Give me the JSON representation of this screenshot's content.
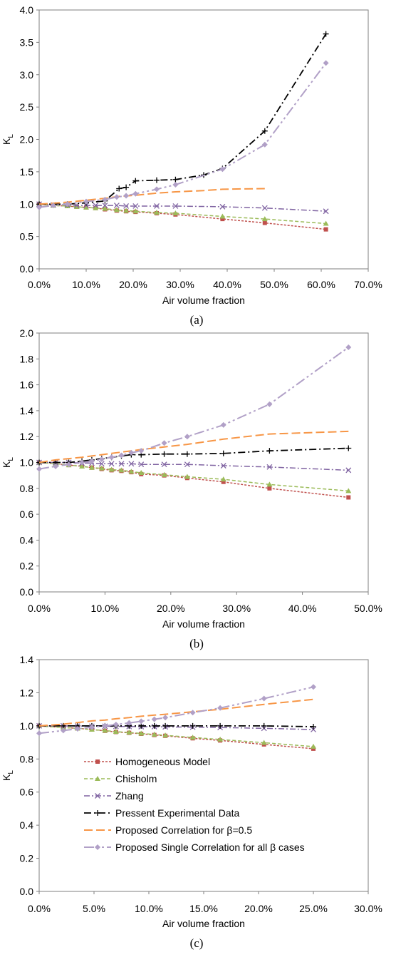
{
  "legend": [
    {
      "series": "homogeneous",
      "label": "Homogeneous Model"
    },
    {
      "series": "chisholm",
      "label": "Chisholm"
    },
    {
      "series": "zhang",
      "label": "Zhang"
    },
    {
      "series": "experimental",
      "label": "Pressent Experimental Data"
    },
    {
      "series": "proposed_beta",
      "label": "Proposed Correlation for  β=0.5"
    },
    {
      "series": "proposed_single",
      "label": "Proposed Single Correlation for all β cases"
    }
  ],
  "styles": {
    "homogeneous": {
      "color": "#C0504D",
      "marker": "square",
      "dash": "3,2",
      "width": 1.5
    },
    "chisholm": {
      "color": "#9BBB59",
      "marker": "triangle",
      "dash": "5,3",
      "width": 1.5
    },
    "zhang": {
      "color": "#8064A2",
      "marker": "x",
      "dash": "8,3,2,3",
      "width": 1.5
    },
    "experimental": {
      "color": "#000000",
      "marker": "plus",
      "dash": "10,4,2,4",
      "width": 1.8
    },
    "proposed_beta": {
      "color": "#F79646",
      "marker": "none",
      "dash": "12,5",
      "width": 2
    },
    "proposed_single": {
      "color": "#B1A0C7",
      "marker": "diamond",
      "dash": "14,4,3,4,3,4",
      "width": 2
    }
  },
  "chart_data": [
    {
      "type": "line",
      "caption": "(a)",
      "xlabel": "Air volume fraction",
      "ylabel": "K",
      "ylabel_sub": "L",
      "xlim": [
        0,
        0.7
      ],
      "ylim": [
        0,
        4.0
      ],
      "xticks": [
        0,
        0.1,
        0.2,
        0.3,
        0.4,
        0.5,
        0.6,
        0.7
      ],
      "xtick_labels": [
        "0.0%",
        "10.0%",
        "20.0%",
        "30.0%",
        "40.0%",
        "50.0%",
        "60.0%",
        "70.0%"
      ],
      "yticks": [
        0,
        0.5,
        1.0,
        1.5,
        2.0,
        2.5,
        3.0,
        3.5,
        4.0
      ],
      "ytick_labels": [
        "0.0",
        "0.5",
        "1.0",
        "1.5",
        "2.0",
        "2.5",
        "3.0",
        "3.5",
        "4.0"
      ],
      "series": [
        {
          "key": "homogeneous",
          "x": [
            0,
            0.03,
            0.06,
            0.08,
            0.1,
            0.12,
            0.14,
            0.165,
            0.185,
            0.205,
            0.25,
            0.29,
            0.39,
            0.48,
            0.61
          ],
          "y": [
            1.0,
            0.98,
            0.97,
            0.96,
            0.95,
            0.94,
            0.92,
            0.9,
            0.89,
            0.88,
            0.86,
            0.84,
            0.77,
            0.71,
            0.61
          ]
        },
        {
          "key": "chisholm",
          "x": [
            0,
            0.03,
            0.06,
            0.08,
            0.1,
            0.12,
            0.14,
            0.165,
            0.185,
            0.205,
            0.25,
            0.29,
            0.39,
            0.48,
            0.61
          ],
          "y": [
            1.0,
            0.98,
            0.97,
            0.96,
            0.95,
            0.94,
            0.93,
            0.91,
            0.9,
            0.89,
            0.87,
            0.86,
            0.81,
            0.77,
            0.7
          ]
        },
        {
          "key": "zhang",
          "x": [
            0,
            0.03,
            0.06,
            0.08,
            0.1,
            0.12,
            0.14,
            0.165,
            0.185,
            0.205,
            0.25,
            0.29,
            0.39,
            0.48,
            0.61
          ],
          "y": [
            1.0,
            0.99,
            0.99,
            0.98,
            0.98,
            0.98,
            0.98,
            0.98,
            0.97,
            0.97,
            0.97,
            0.97,
            0.96,
            0.94,
            0.89
          ]
        },
        {
          "key": "experimental",
          "x": [
            0,
            0.06,
            0.1,
            0.14,
            0.17,
            0.185,
            0.205,
            0.25,
            0.29,
            0.35,
            0.39,
            0.48,
            0.61
          ],
          "y": [
            1.0,
            1.0,
            1.02,
            1.05,
            1.24,
            1.26,
            1.36,
            1.37,
            1.38,
            1.45,
            1.55,
            2.13,
            3.63
          ]
        },
        {
          "key": "proposed_beta",
          "x": [
            0,
            0.06,
            0.1,
            0.14,
            0.17,
            0.21,
            0.25,
            0.29,
            0.35,
            0.39,
            0.43,
            0.48
          ],
          "y": [
            1.0,
            1.03,
            1.06,
            1.09,
            1.12,
            1.14,
            1.17,
            1.19,
            1.21,
            1.23,
            1.235,
            1.24
          ]
        },
        {
          "key": "proposed_single",
          "x": [
            0,
            0.03,
            0.06,
            0.1,
            0.14,
            0.165,
            0.185,
            0.205,
            0.25,
            0.29,
            0.39,
            0.48,
            0.61
          ],
          "y": [
            0.95,
            0.98,
            1.0,
            1.04,
            1.07,
            1.11,
            1.13,
            1.16,
            1.23,
            1.3,
            1.54,
            1.92,
            3.18
          ]
        }
      ]
    },
    {
      "type": "line",
      "caption": "(b)",
      "xlabel": "Air volume fraction",
      "ylabel": "K",
      "ylabel_sub": "L",
      "xlim": [
        0,
        0.5
      ],
      "ylim": [
        0,
        2.0
      ],
      "xticks": [
        0,
        0.1,
        0.2,
        0.3,
        0.4,
        0.5
      ],
      "xtick_labels": [
        "0.0%",
        "10.0%",
        "20.0%",
        "30.0%",
        "40.0%",
        "50.0%"
      ],
      "yticks": [
        0,
        0.2,
        0.4,
        0.6,
        0.8,
        1.0,
        1.2,
        1.4,
        1.6,
        1.8,
        2.0
      ],
      "ytick_labels": [
        "0.0",
        "0.2",
        "0.4",
        "0.6",
        "0.8",
        "1.0",
        "1.2",
        "1.4",
        "1.6",
        "1.8",
        "2.0"
      ],
      "series": [
        {
          "key": "homogeneous",
          "x": [
            0,
            0.025,
            0.045,
            0.065,
            0.08,
            0.095,
            0.11,
            0.125,
            0.14,
            0.155,
            0.19,
            0.225,
            0.28,
            0.35,
            0.47
          ],
          "y": [
            1.0,
            0.99,
            0.98,
            0.97,
            0.96,
            0.95,
            0.94,
            0.935,
            0.925,
            0.91,
            0.9,
            0.88,
            0.85,
            0.8,
            0.73
          ]
        },
        {
          "key": "chisholm",
          "x": [
            0,
            0.025,
            0.045,
            0.065,
            0.08,
            0.095,
            0.11,
            0.125,
            0.14,
            0.155,
            0.19,
            0.225,
            0.28,
            0.35,
            0.47
          ],
          "y": [
            1.0,
            0.99,
            0.98,
            0.97,
            0.96,
            0.955,
            0.945,
            0.94,
            0.93,
            0.92,
            0.905,
            0.89,
            0.87,
            0.83,
            0.78
          ]
        },
        {
          "key": "zhang",
          "x": [
            0,
            0.025,
            0.045,
            0.065,
            0.08,
            0.095,
            0.11,
            0.125,
            0.14,
            0.155,
            0.19,
            0.225,
            0.28,
            0.35,
            0.47
          ],
          "y": [
            1.0,
            1.0,
            1.0,
            0.995,
            0.995,
            0.99,
            0.99,
            0.99,
            0.99,
            0.985,
            0.985,
            0.985,
            0.975,
            0.965,
            0.94
          ]
        },
        {
          "key": "experimental",
          "x": [
            0,
            0.025,
            0.045,
            0.065,
            0.08,
            0.095,
            0.11,
            0.125,
            0.14,
            0.155,
            0.19,
            0.225,
            0.28,
            0.35,
            0.47
          ],
          "y": [
            1.0,
            1.0,
            1.0,
            1.01,
            1.02,
            1.03,
            1.04,
            1.05,
            1.06,
            1.06,
            1.065,
            1.065,
            1.07,
            1.09,
            1.11
          ]
        },
        {
          "key": "proposed_beta",
          "x": [
            0,
            0.025,
            0.045,
            0.065,
            0.08,
            0.095,
            0.11,
            0.125,
            0.14,
            0.155,
            0.19,
            0.225,
            0.28,
            0.35,
            0.47
          ],
          "y": [
            1.0,
            1.02,
            1.03,
            1.04,
            1.05,
            1.06,
            1.07,
            1.08,
            1.09,
            1.1,
            1.12,
            1.14,
            1.18,
            1.22,
            1.24
          ]
        },
        {
          "key": "proposed_single",
          "x": [
            0,
            0.025,
            0.045,
            0.065,
            0.08,
            0.095,
            0.11,
            0.125,
            0.14,
            0.155,
            0.19,
            0.225,
            0.28,
            0.35,
            0.47
          ],
          "y": [
            0.95,
            0.97,
            0.985,
            1.0,
            1.01,
            1.025,
            1.04,
            1.055,
            1.075,
            1.09,
            1.15,
            1.2,
            1.29,
            1.45,
            1.89
          ]
        }
      ]
    },
    {
      "type": "line",
      "caption": "(c)",
      "xlabel": "Air volume fraction",
      "ylabel": "K",
      "ylabel_sub": "L",
      "xlim": [
        0,
        0.3
      ],
      "ylim": [
        0,
        1.4
      ],
      "xticks": [
        0,
        0.05,
        0.1,
        0.15,
        0.2,
        0.25,
        0.3
      ],
      "xtick_labels": [
        "0.0%",
        "5.0%",
        "10.0%",
        "15.0%",
        "20.0%",
        "25.0%",
        "30.0%"
      ],
      "yticks": [
        0,
        0.2,
        0.4,
        0.6,
        0.8,
        1.0,
        1.2,
        1.4
      ],
      "ytick_labels": [
        "0.0",
        "0.2",
        "0.4",
        "0.6",
        "0.8",
        "1.0",
        "1.2",
        "1.4"
      ],
      "series": [
        {
          "key": "homogeneous",
          "x": [
            0,
            0.022,
            0.035,
            0.048,
            0.06,
            0.07,
            0.082,
            0.093,
            0.105,
            0.115,
            0.14,
            0.165,
            0.205,
            0.25
          ],
          "y": [
            1.0,
            0.99,
            0.985,
            0.978,
            0.97,
            0.963,
            0.958,
            0.952,
            0.945,
            0.94,
            0.925,
            0.912,
            0.888,
            0.862
          ]
        },
        {
          "key": "chisholm",
          "x": [
            0,
            0.022,
            0.035,
            0.048,
            0.06,
            0.07,
            0.082,
            0.093,
            0.105,
            0.115,
            0.14,
            0.165,
            0.205,
            0.25
          ],
          "y": [
            1.0,
            0.99,
            0.985,
            0.978,
            0.972,
            0.965,
            0.96,
            0.954,
            0.948,
            0.943,
            0.93,
            0.918,
            0.898,
            0.875
          ]
        },
        {
          "key": "zhang",
          "x": [
            0,
            0.022,
            0.035,
            0.048,
            0.06,
            0.07,
            0.082,
            0.093,
            0.105,
            0.115,
            0.14,
            0.165,
            0.205,
            0.25
          ],
          "y": [
            1.0,
            1.0,
            0.999,
            0.998,
            0.998,
            0.997,
            0.996,
            0.995,
            0.995,
            0.994,
            0.992,
            0.99,
            0.985,
            0.978
          ]
        },
        {
          "key": "experimental",
          "x": [
            0,
            0.022,
            0.035,
            0.048,
            0.06,
            0.07,
            0.082,
            0.093,
            0.105,
            0.115,
            0.14,
            0.165,
            0.205,
            0.25
          ],
          "y": [
            1.0,
            1.0,
            1.0,
            1.0,
            1.0,
            1.0,
            1.0,
            1.0,
            1.0,
            1.0,
            1.0,
            1.0,
            1.0,
            0.995
          ]
        },
        {
          "key": "proposed_beta",
          "x": [
            0,
            0.022,
            0.035,
            0.048,
            0.06,
            0.07,
            0.082,
            0.093,
            0.105,
            0.115,
            0.14,
            0.165,
            0.205,
            0.25
          ],
          "y": [
            1.0,
            1.01,
            1.02,
            1.03,
            1.035,
            1.043,
            1.05,
            1.058,
            1.065,
            1.07,
            1.085,
            1.1,
            1.13,
            1.16
          ]
        },
        {
          "key": "proposed_single",
          "x": [
            0,
            0.022,
            0.035,
            0.048,
            0.06,
            0.07,
            0.082,
            0.093,
            0.105,
            0.115,
            0.14,
            0.165,
            0.205,
            0.25
          ],
          "y": [
            0.955,
            0.972,
            0.982,
            0.992,
            1.0,
            1.008,
            1.018,
            1.028,
            1.04,
            1.05,
            1.08,
            1.108,
            1.165,
            1.235
          ]
        }
      ]
    }
  ]
}
